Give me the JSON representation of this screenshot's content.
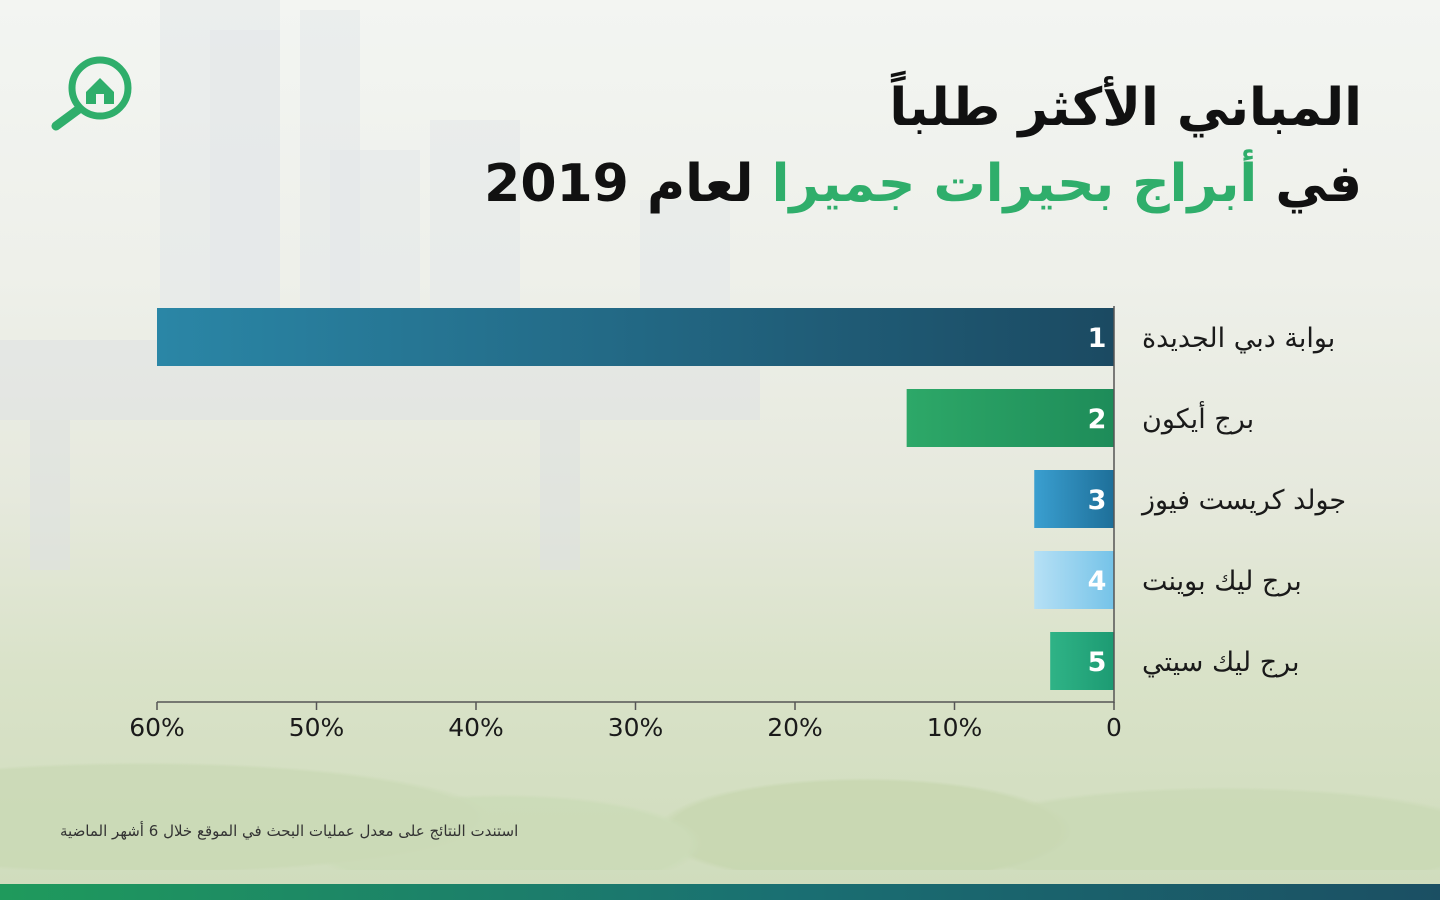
{
  "title": {
    "line1": "المباني الأكثر طلباً",
    "line2_prefix": "في",
    "line2_highlight": "أبراج بحيرات جميرا",
    "line2_suffix": "لعام 2019"
  },
  "footnote": "استندت النتائج على معدل عمليات البحث في الموقع خلال 6 أشهر الماضية",
  "colors": {
    "accent_green": "#2fae6b",
    "text": "#111111"
  },
  "chart_data": {
    "type": "bar",
    "orientation": "horizontal",
    "direction": "right-to-left",
    "categories": [
      "بوابة دبي الجديدة",
      "برج أيكون",
      "جولد كريست فيوز",
      "برج ليك بوينت",
      "برج ليك سيتي"
    ],
    "ranks": [
      "1",
      "2",
      "3",
      "4",
      "5"
    ],
    "values": [
      60,
      13,
      5,
      5,
      4
    ],
    "bar_colors": [
      [
        "#1b4a62",
        "#2a86a6"
      ],
      [
        "#1e8c59",
        "#2da868"
      ],
      [
        "#1e6f99",
        "#3a9fd0"
      ],
      [
        "#75c3e8",
        "#b6e0f5"
      ],
      [
        "#1d9b73",
        "#2fb386"
      ]
    ],
    "xlim": [
      0,
      60
    ],
    "xticks": [
      "0",
      "10%",
      "20%",
      "30%",
      "40%",
      "50%",
      "60%"
    ],
    "tick_values": [
      0,
      10,
      20,
      30,
      40,
      50,
      60
    ],
    "grid": false,
    "legend": "none"
  }
}
